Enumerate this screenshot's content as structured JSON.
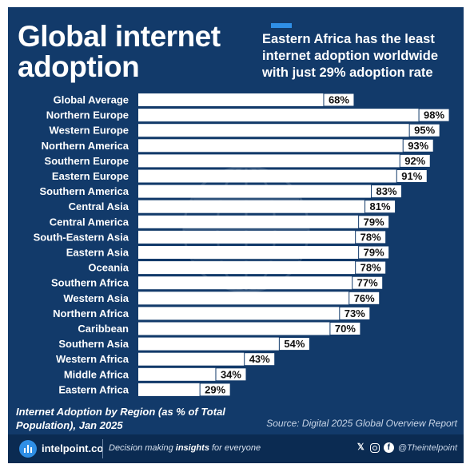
{
  "title": "Global internet adoption",
  "headline": "Eastern Africa has the least internet adoption worldwide with just 29% adoption rate",
  "chart_data": {
    "type": "bar",
    "orientation": "horizontal",
    "categories": [
      "Global Average",
      "Northern Europe",
      "Western Europe",
      "Northern America",
      "Southern Europe",
      "Eastern Europe",
      "Southern America",
      "Central Asia",
      "Central America",
      "South-Eastern Asia",
      "Eastern Asia",
      "Oceania",
      "Southern Africa",
      "Western Asia",
      "Northern Africa",
      "Caribbean",
      "Southern Asia",
      "Western Africa",
      "Middle Africa",
      "Eastern Africa"
    ],
    "values": [
      68,
      98,
      95,
      93,
      92,
      91,
      83,
      81,
      79,
      78,
      79,
      78,
      77,
      76,
      73,
      70,
      54,
      43,
      34,
      29
    ],
    "value_labels": [
      "68%",
      "98%",
      "95%",
      "93%",
      "92%",
      "91%",
      "83%",
      "81%",
      "79%",
      "78%",
      "79%",
      "78%",
      "77%",
      "76%",
      "73%",
      "70%",
      "54%",
      "43%",
      "34%",
      "29%"
    ],
    "xlim": [
      0,
      100
    ],
    "grid": false,
    "bar_color": "#ffffff",
    "background_color": "#123a6a",
    "label_color": "#ffffff"
  },
  "caption": "Internet Adoption by Region (as % of Total Population), Jan 2025",
  "source": "Source: Digital 2025 Global Overview Report",
  "footer": {
    "brand": "intelpoint.co",
    "tagline_start": "Decision making ",
    "tagline_bold": "insights",
    "tagline_end": " for everyone",
    "handle": "@Theintelpoint",
    "icons": [
      "x-icon",
      "instagram-icon",
      "facebook-icon"
    ]
  },
  "colors": {
    "accent": "#2f8fe6",
    "footer_bg": "#0b2b52"
  }
}
